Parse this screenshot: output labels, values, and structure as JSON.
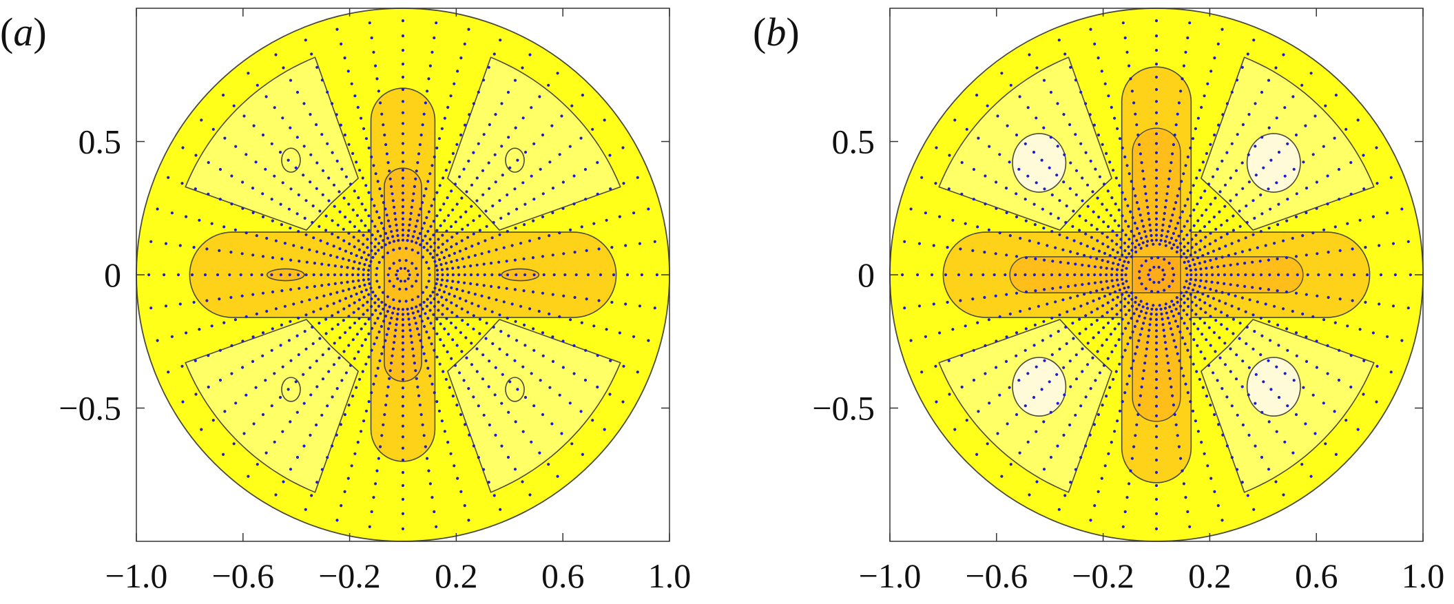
{
  "figure": {
    "panels": [
      {
        "label_open": "(",
        "label_letter": "a",
        "label_close": ")"
      },
      {
        "label_open": "(",
        "label_letter": "b",
        "label_close": ")"
      }
    ]
  },
  "colors": {
    "yellow": "#ffff1a",
    "pale_yellow": "#ffff66",
    "pale_center": "#fffbd9",
    "orange_light": "#ffd21a",
    "orange_mid": "#ffbe1a",
    "orange_deep": "#ffab1a",
    "contour": "#4a4a3a",
    "dots": "#1c1ccf",
    "axes": "#333333"
  },
  "chart_data": [
    {
      "type": "contour",
      "panel": "a",
      "domain": "unit disk",
      "xlim": [
        -1.0,
        1.0
      ],
      "ylim": [
        -1.0,
        1.0
      ],
      "xticks": [
        -1.0,
        -0.6,
        -0.2,
        0.2,
        0.6,
        1.0
      ],
      "xtick_labels": [
        "−1.0",
        "−0.6",
        "−0.2",
        "0.2",
        "0.6",
        "1.0"
      ],
      "yticks": [
        -0.5,
        0,
        0.5
      ],
      "ytick_labels": [
        "−0.5",
        "0",
        "0.5"
      ],
      "grid": false,
      "symmetry": "four-fold (cross shape along axes, lobes along diagonals)",
      "regions": {
        "cross_arms": {
          "along_x_halfwidth": 0.8,
          "along_x_radius": 0.16,
          "along_y_halfwidth": 0.7,
          "along_y_radius": 0.12
        },
        "inner_cross": {
          "y_extent": 0.4,
          "x_radius": 0.07
        },
        "x_axis_islands": {
          "center": 0.44,
          "halfwidth": 0.07,
          "halfheight": 0.022
        },
        "diagonal_lobes": {
          "inner_radius": 0.38,
          "outer_radius": 0.88,
          "half_angle_deg": 23
        },
        "lobe_islands": {
          "center": [
            0.42,
            0.43
          ],
          "rx": 0.035,
          "ry": 0.045
        }
      },
      "particles": {
        "rays": 48,
        "center_rings": [
          0.025,
          0.055,
          0.1
        ]
      }
    },
    {
      "type": "contour",
      "panel": "b",
      "domain": "unit disk",
      "xlim": [
        -1.0,
        1.0
      ],
      "ylim": [
        -1.0,
        1.0
      ],
      "xticks": [
        -1.0,
        -0.6,
        -0.2,
        0.2,
        0.6,
        1.0
      ],
      "xtick_labels": [
        "−1.0",
        "−0.6",
        "−0.2",
        "0.2",
        "0.6",
        "1.0"
      ],
      "yticks": [
        -0.5,
        0,
        0.5
      ],
      "ytick_labels": [
        "−0.5",
        "0",
        "0.5"
      ],
      "grid": false,
      "symmetry": "four-fold (cross shape along axes, lobes along diagonals)",
      "regions": {
        "cross_arms": {
          "along_x_halfwidth": 0.8,
          "along_x_radius": 0.16,
          "along_y_halfwidth": 0.78,
          "along_y_radius": 0.13
        },
        "inner_cross": {
          "y_extent": 0.55,
          "x_extent": 0.55,
          "radius": 0.09
        },
        "diagonal_lobes": {
          "inner_radius": 0.38,
          "outer_radius": 0.88,
          "half_angle_deg": 23
        },
        "lobe_islands": {
          "center": [
            0.44,
            0.42
          ],
          "rx": 0.1,
          "ry": 0.11
        }
      },
      "particles": {
        "rays": 48,
        "center_rings": [
          0.03,
          0.065,
          0.115
        ]
      }
    }
  ]
}
